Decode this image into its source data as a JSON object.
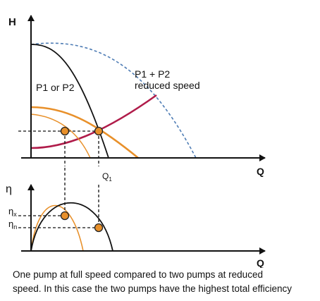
{
  "diagram": {
    "axis_labels": {
      "head": "H",
      "flow": "Q",
      "efficiency": "η",
      "flow_lower": "Q"
    },
    "curve_labels": {
      "single": "P1 or P2",
      "combined_line1": "P1 + P2",
      "combined_line2": "reduced speed"
    },
    "point_labels": {
      "operating_flow": "Q",
      "operating_flow_sub": "1",
      "efficiency_x": "η",
      "efficiency_x_sub": "x",
      "efficiency_n": "η",
      "efficiency_n_sub": "n"
    },
    "colors": {
      "axis": "#111111",
      "full_speed_curve": "#111111",
      "reduced_speed_curve": "#e8902a",
      "combined_dashed_curve": "#4f7db5",
      "system_curve": "#b01c4a",
      "marker_fill": "#e8902a",
      "marker_stroke": "#222222"
    }
  },
  "caption": {
    "line1": "One pump at full speed compared to two pumps at reduced",
    "line2": "speed. In this case the two pumps have the highest total efficiency"
  }
}
